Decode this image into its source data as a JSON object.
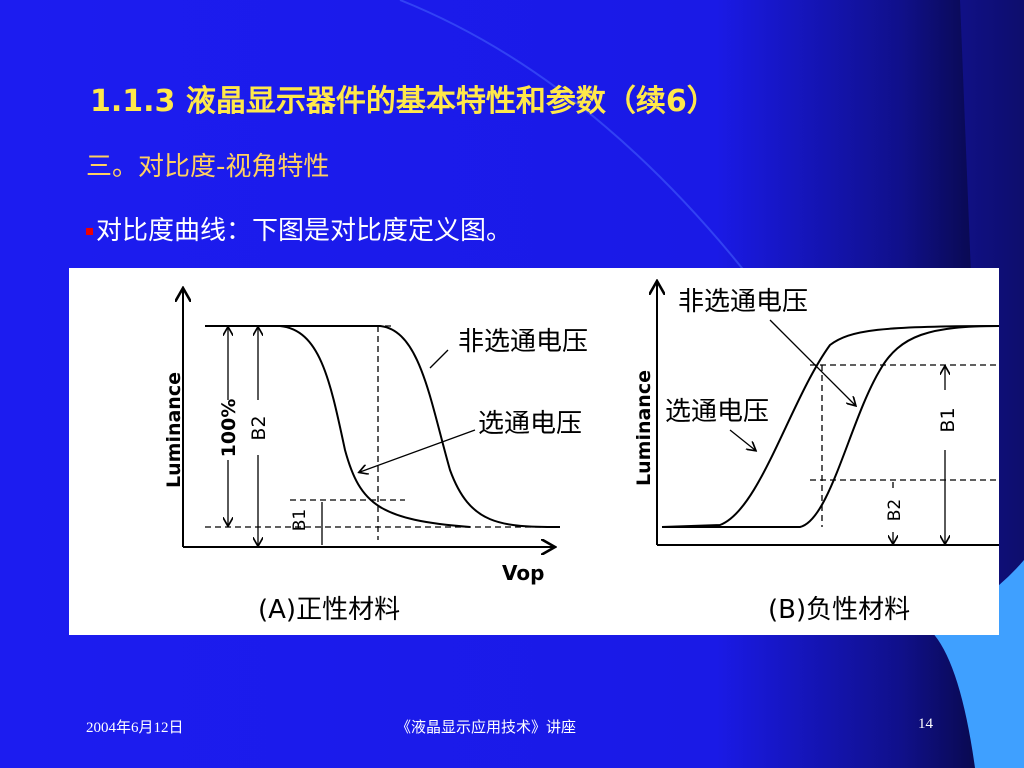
{
  "header": {
    "title": "1.1.3 液晶显示器件的基本特性和参数（续6）"
  },
  "section": "三。对比度-视角特性",
  "bullet": "对比度曲线：下图是对比度定义图。",
  "figure": {
    "panels": [
      {
        "y_label": "Luminance",
        "full_label": "100%",
        "b2": "B2",
        "b1": "B1",
        "curve_off": "非选通电压",
        "curve_on": "选通电压",
        "x_label": "Vop",
        "caption": "(A)正性材料"
      },
      {
        "y_label": "Luminance",
        "curve_off": "非选通电压",
        "curve_on": "选通电压",
        "b1": "B1",
        "b2": "B2",
        "caption": "(B)负性材料"
      }
    ]
  },
  "footer": {
    "date": "2004年6月12日",
    "course": "《液晶显示应用技术》讲座",
    "page": "14"
  }
}
